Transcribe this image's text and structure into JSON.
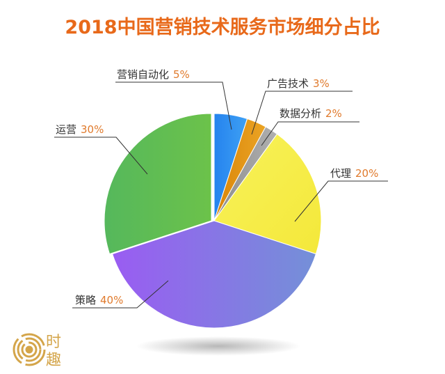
{
  "colors": {
    "title": "#e8691a",
    "pct": "#e07a2c",
    "leader": "#333333",
    "logo": "#d4a54a"
  },
  "brand": {
    "char1": "时",
    "char2": "趣"
  },
  "chart_data": {
    "type": "pie",
    "title": "2018中国营销技术服务市场细分占比",
    "unit": "%",
    "slices": [
      {
        "name": "营销自动化",
        "value": 5,
        "color": "#2b8ff0",
        "label": "营销自动化",
        "pct": "5%"
      },
      {
        "name": "广告技术",
        "value": 3,
        "color": "#e0920e",
        "label": "广告技术",
        "pct": "3%"
      },
      {
        "name": "数据分析",
        "value": 2,
        "color": "#9a9a9a",
        "label": "数据分析",
        "pct": "2%"
      },
      {
        "name": "代理",
        "value": 20,
        "color": "#f6ef4c",
        "label": "代理",
        "pct": "20%"
      },
      {
        "name": "策略",
        "value": 40,
        "color": "#8a68e8",
        "label": "策略",
        "pct": "40%"
      },
      {
        "name": "运营",
        "value": 30,
        "color": "#5cbb5a",
        "label": "运营",
        "pct": "30%"
      }
    ]
  }
}
